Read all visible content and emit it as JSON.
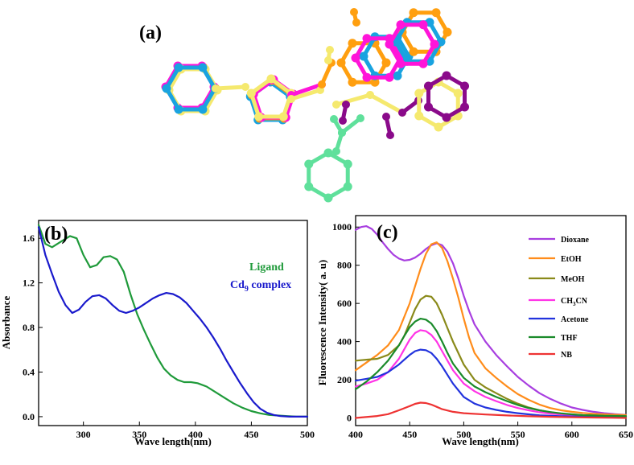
{
  "figure": {
    "panel_a_label": "(a)"
  },
  "molecule": {
    "colors": [
      "#19a3e0",
      "#f5e96e",
      "#ff14d9",
      "#ff9f0f",
      "#5fe09b",
      "#8a0a8a"
    ]
  },
  "chart_data": [
    {
      "type": "line",
      "panel_label": "(b)",
      "xlabel": "Wave length(nm)",
      "ylabel": "Absorbance",
      "xlim": [
        260,
        500
      ],
      "ylim": [
        -0.08,
        1.76
      ],
      "xticks": [
        300,
        350,
        400,
        450,
        500
      ],
      "yticks": [
        0.0,
        0.4,
        0.8,
        1.2,
        1.6
      ],
      "ytick_labels": [
        "0.0",
        "0.4",
        "0.8",
        "1.2",
        "1.6"
      ],
      "grid": false,
      "legend_placement": "top-right text annotations",
      "series": [
        {
          "name": "Ligand",
          "color": "#1f9a3a",
          "x": [
            260,
            266,
            272,
            280,
            288,
            294,
            300,
            306,
            312,
            318,
            324,
            330,
            336,
            342,
            348,
            354,
            360,
            366,
            372,
            378,
            384,
            390,
            396,
            402,
            410,
            418,
            426,
            434,
            442,
            450,
            458,
            466,
            474,
            482,
            490,
            500
          ],
          "y": [
            1.72,
            1.55,
            1.52,
            1.57,
            1.62,
            1.6,
            1.45,
            1.34,
            1.36,
            1.43,
            1.44,
            1.41,
            1.3,
            1.1,
            0.92,
            0.78,
            0.65,
            0.53,
            0.43,
            0.37,
            0.33,
            0.31,
            0.31,
            0.3,
            0.27,
            0.22,
            0.17,
            0.12,
            0.08,
            0.05,
            0.03,
            0.015,
            0.01,
            0.005,
            0.0,
            0.0
          ]
        },
        {
          "name": "Cd$_9$ complex",
          "label_main": "Cd",
          "label_sub": "9",
          "label_rest": " complex",
          "color": "#1a1acc",
          "x": [
            260,
            266,
            272,
            278,
            284,
            290,
            296,
            302,
            308,
            314,
            320,
            326,
            332,
            338,
            344,
            350,
            356,
            362,
            368,
            374,
            380,
            386,
            392,
            398,
            404,
            410,
            416,
            422,
            428,
            434,
            440,
            446,
            452,
            458,
            464,
            470,
            476,
            484,
            492,
            500
          ],
          "y": [
            1.7,
            1.45,
            1.28,
            1.12,
            1.0,
            0.93,
            0.96,
            1.03,
            1.08,
            1.09,
            1.06,
            1.0,
            0.95,
            0.93,
            0.95,
            0.98,
            1.02,
            1.06,
            1.09,
            1.11,
            1.1,
            1.07,
            1.02,
            0.95,
            0.88,
            0.8,
            0.71,
            0.61,
            0.5,
            0.4,
            0.3,
            0.21,
            0.13,
            0.07,
            0.035,
            0.015,
            0.005,
            0.0,
            0.0,
            0.0
          ]
        }
      ]
    },
    {
      "type": "line",
      "panel_label": "(c)",
      "xlabel": "Wave length(nm)",
      "ylabel": "Fluorescence Intensity( a. u)",
      "xlim": [
        400,
        650
      ],
      "ylim": [
        -40,
        1060
      ],
      "xticks": [
        400,
        450,
        500,
        550,
        600,
        650
      ],
      "yticks": [
        0,
        200,
        400,
        600,
        800,
        1000
      ],
      "grid": false,
      "legend_placement": "top-right",
      "series": [
        {
          "name": "Dioxane",
          "color": "#a83ee0",
          "x": [
            400,
            405,
            410,
            415,
            420,
            425,
            430,
            435,
            440,
            445,
            450,
            455,
            460,
            465,
            470,
            475,
            480,
            485,
            490,
            495,
            500,
            505,
            510,
            520,
            530,
            540,
            550,
            560,
            570,
            580,
            590,
            600,
            610,
            620,
            630,
            640,
            650
          ],
          "y": [
            985,
            1000,
            1005,
            990,
            960,
            920,
            885,
            855,
            835,
            825,
            828,
            840,
            860,
            885,
            905,
            915,
            905,
            870,
            810,
            730,
            640,
            560,
            490,
            400,
            330,
            270,
            215,
            170,
            130,
            100,
            75,
            55,
            42,
            32,
            25,
            20,
            16
          ]
        },
        {
          "name": "EtOH",
          "color": "#ff8c1a",
          "x": [
            400,
            410,
            420,
            430,
            440,
            450,
            455,
            460,
            465,
            470,
            475,
            480,
            485,
            490,
            495,
            500,
            505,
            510,
            520,
            530,
            540,
            550,
            560,
            570,
            580,
            590,
            600,
            610,
            620,
            630,
            640,
            650
          ],
          "y": [
            250,
            290,
            330,
            380,
            460,
            600,
            690,
            780,
            860,
            910,
            920,
            890,
            820,
            730,
            630,
            520,
            420,
            340,
            260,
            210,
            165,
            125,
            95,
            70,
            52,
            40,
            32,
            26,
            22,
            19,
            17,
            15
          ]
        },
        {
          "name": "MeOH",
          "color": "#8a8a1a",
          "x": [
            400,
            410,
            420,
            430,
            440,
            445,
            450,
            455,
            460,
            465,
            470,
            475,
            480,
            485,
            490,
            500,
            510,
            520,
            530,
            540,
            550,
            560,
            570,
            580,
            590,
            600,
            610,
            620,
            630,
            640,
            650
          ],
          "y": [
            300,
            305,
            310,
            330,
            380,
            430,
            500,
            570,
            620,
            640,
            635,
            600,
            540,
            470,
            400,
            280,
            200,
            160,
            130,
            100,
            75,
            55,
            40,
            30,
            22,
            18,
            15,
            13,
            12,
            11,
            10
          ]
        },
        {
          "name": "CH$_3$CN",
          "label_main": "CH",
          "label_sub": "3",
          "label_rest": "CN",
          "color": "#ff33e6",
          "x": [
            400,
            410,
            420,
            430,
            440,
            445,
            450,
            455,
            460,
            465,
            470,
            475,
            480,
            485,
            490,
            500,
            510,
            520,
            530,
            540,
            550,
            560,
            570,
            580,
            590,
            600,
            610,
            620,
            630,
            640,
            650
          ],
          "y": [
            165,
            180,
            200,
            240,
            310,
            360,
            410,
            445,
            460,
            455,
            435,
            400,
            350,
            300,
            250,
            180,
            140,
            110,
            88,
            68,
            52,
            40,
            30,
            23,
            18,
            15,
            12,
            10,
            9,
            8,
            7
          ]
        },
        {
          "name": "Acetone",
          "color": "#2233dd",
          "x": [
            400,
            410,
            420,
            430,
            440,
            445,
            450,
            455,
            460,
            465,
            470,
            475,
            480,
            485,
            490,
            500,
            510,
            520,
            530,
            540,
            550,
            560,
            570,
            580,
            590,
            600,
            610,
            620,
            630,
            640,
            650
          ],
          "y": [
            195,
            205,
            215,
            240,
            280,
            305,
            330,
            350,
            358,
            355,
            340,
            310,
            270,
            225,
            180,
            110,
            75,
            55,
            42,
            32,
            25,
            19,
            14,
            11,
            9,
            8,
            7,
            6,
            6,
            5,
            5
          ]
        },
        {
          "name": "THF",
          "color": "#1a8a2a",
          "x": [
            400,
            410,
            420,
            430,
            440,
            445,
            450,
            455,
            460,
            465,
            470,
            475,
            480,
            485,
            490,
            500,
            510,
            520,
            530,
            540,
            550,
            560,
            570,
            580,
            590,
            600,
            610,
            620,
            630,
            640,
            650
          ],
          "y": [
            150,
            190,
            240,
            300,
            380,
            430,
            475,
            505,
            520,
            515,
            495,
            455,
            400,
            340,
            285,
            210,
            165,
            135,
            110,
            88,
            68,
            52,
            40,
            31,
            24,
            19,
            15,
            13,
            11,
            10,
            9
          ]
        },
        {
          "name": "NB",
          "color": "#ee3333",
          "x": [
            400,
            420,
            430,
            440,
            450,
            455,
            460,
            465,
            470,
            475,
            480,
            490,
            500,
            520,
            540,
            560,
            580,
            600,
            620,
            650
          ],
          "y": [
            0,
            10,
            20,
            40,
            62,
            74,
            80,
            78,
            70,
            58,
            46,
            32,
            25,
            18,
            13,
            9,
            6,
            4,
            2,
            0
          ]
        }
      ]
    }
  ]
}
